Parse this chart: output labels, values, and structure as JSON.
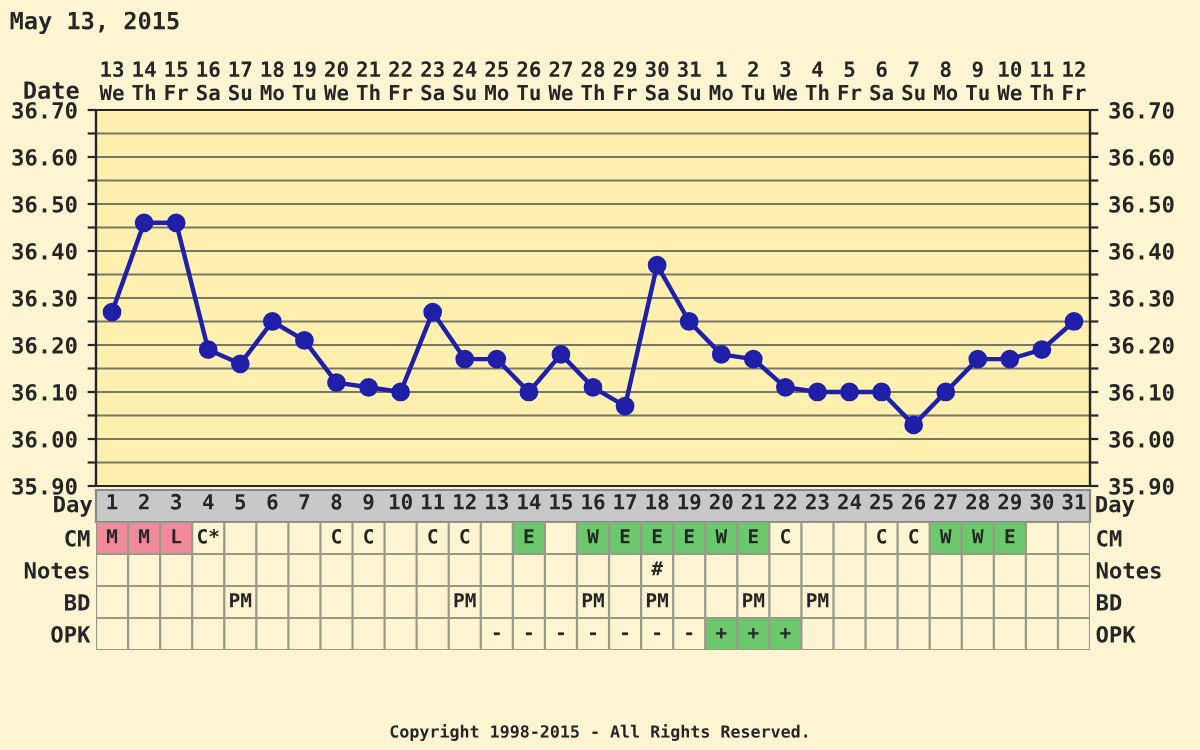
{
  "chart_data": [
    {
      "type": "line",
      "title": "May 13, 2015",
      "xlabel": "Date",
      "categories": [
        "13\nWe",
        "14\nTh",
        "15\nFr",
        "16\nSa",
        "17\nSu",
        "18\nMo",
        "19\nTu",
        "20\nWe",
        "21\nTh",
        "22\nFr",
        "23\nSa",
        "24\nSu",
        "25\nMo",
        "26\nTu",
        "27\nWe",
        "28\nTh",
        "29\nFr",
        "30\nSa",
        "31\nSu",
        "1\nMo",
        "2\nTu",
        "3\nWe",
        "4\nTh",
        "5\nFr",
        "6\nSa",
        "7\nSu",
        "8\nMo",
        "9\nTu",
        "10\nWe",
        "11\nTh",
        "12\nFr"
      ],
      "series": [
        {
          "color": "#1f1fa8",
          "values": [
            36.27,
            36.46,
            36.46,
            36.19,
            36.16,
            36.25,
            36.21,
            36.12,
            36.11,
            36.1,
            36.27,
            36.17,
            36.17,
            36.1,
            36.18,
            36.11,
            36.07,
            36.37,
            36.25,
            36.18,
            36.17,
            36.11,
            36.1,
            36.1,
            36.1,
            36.03,
            36.1,
            36.17,
            36.17,
            36.19,
            36.25
          ]
        }
      ],
      "ylim": [
        35.9,
        36.7
      ],
      "yticks": [
        {
          "value": 35.9,
          "label": "35.90"
        },
        {
          "value": 35.95,
          "label": null
        },
        {
          "value": 36.0,
          "label": "36.00"
        },
        {
          "value": 36.05,
          "label": null
        },
        {
          "value": 36.1,
          "label": "36.10"
        },
        {
          "value": 36.15,
          "label": null
        },
        {
          "value": 36.2,
          "label": "36.20"
        },
        {
          "value": 36.25,
          "label": null
        },
        {
          "value": 36.3,
          "label": "36.30"
        },
        {
          "value": 36.35,
          "label": null
        },
        {
          "value": 36.4,
          "label": "36.40"
        },
        {
          "value": 36.45,
          "label": null
        },
        {
          "value": 36.5,
          "label": "36.50"
        },
        {
          "value": 36.55,
          "label": null
        },
        {
          "value": 36.6,
          "label": "36.60"
        },
        {
          "value": 36.65,
          "label": null
        },
        {
          "value": 36.7,
          "label": "36.70"
        }
      ],
      "y2lim": [
        35.9,
        36.7
      ],
      "y2ticks": [
        {
          "value": 35.9,
          "label": "35.90"
        },
        {
          "value": 35.95,
          "label": null
        },
        {
          "value": 36.0,
          "label": "36.00"
        },
        {
          "value": 36.05,
          "label": null
        },
        {
          "value": 36.1,
          "label": "36.10"
        },
        {
          "value": 36.15,
          "label": null
        },
        {
          "value": 36.2,
          "label": "36.20"
        },
        {
          "value": 36.25,
          "label": null
        },
        {
          "value": 36.3,
          "label": "36.30"
        },
        {
          "value": 36.35,
          "label": null
        },
        {
          "value": 36.4,
          "label": "36.40"
        },
        {
          "value": 36.45,
          "label": null
        },
        {
          "value": 36.5,
          "label": "36.50"
        },
        {
          "value": 36.55,
          "label": null
        },
        {
          "value": 36.6,
          "label": "36.60"
        },
        {
          "value": 36.65,
          "label": null
        },
        {
          "value": 36.7,
          "label": "36.70"
        }
      ],
      "grid": true,
      "marker": "circle",
      "line_style": "solid",
      "legend": false
    },
    {
      "type": "heatmap",
      "xlabel": "Day",
      "categories": [
        "1",
        "2",
        "3",
        "4",
        "5",
        "6",
        "7",
        "8",
        "9",
        "10",
        "11",
        "12",
        "13",
        "14",
        "15",
        "16",
        "17",
        "18",
        "19",
        "20",
        "21",
        "22",
        "23",
        "24",
        "25",
        "26",
        "27",
        "28",
        "29",
        "30",
        "31"
      ],
      "y_categories": [
        "CM",
        "Notes",
        "BD",
        "OPK"
      ],
      "y2_categories": [
        "CM",
        "Notes",
        "BD",
        "OPK"
      ],
      "cells": [
        [
          null,
          null,
          null,
          null,
          null,
          null,
          null,
          null,
          null,
          null,
          null,
          null,
          null,
          null,
          null,
          null,
          null,
          null,
          null,
          null,
          null,
          null,
          null,
          null,
          null,
          null,
          null,
          null,
          null,
          null,
          null
        ],
        [
          null,
          null,
          null,
          null,
          null,
          null,
          null,
          null,
          null,
          null,
          null,
          null,
          null,
          null,
          null,
          null,
          null,
          null,
          null,
          null,
          null,
          null,
          null,
          null,
          null,
          null,
          null,
          null,
          null,
          null,
          null
        ],
        [
          null,
          null,
          null,
          null,
          null,
          null,
          null,
          null,
          null,
          null,
          null,
          null,
          null,
          null,
          null,
          null,
          null,
          null,
          null,
          null,
          null,
          null,
          null,
          null,
          null,
          null,
          null,
          null,
          null,
          null,
          null
        ],
        [
          null,
          null,
          null,
          null,
          null,
          null,
          null,
          null,
          null,
          null,
          null,
          null,
          null,
          null,
          null,
          null,
          null,
          null,
          null,
          null,
          null,
          null,
          null,
          null,
          null,
          null,
          null,
          null,
          null,
          null,
          null
        ]
      ],
      "cell_labels": [
        [
          "M",
          "M",
          "L",
          "C*",
          null,
          null,
          null,
          "C",
          "C",
          null,
          "C",
          "C",
          null,
          "E",
          null,
          "W",
          "E",
          "E",
          "E",
          "W",
          "E",
          "C",
          null,
          null,
          "C",
          "C",
          "W",
          "W",
          "E",
          null,
          null
        ],
        [
          null,
          null,
          null,
          null,
          null,
          null,
          null,
          null,
          null,
          null,
          null,
          null,
          null,
          null,
          null,
          null,
          null,
          "#",
          null,
          null,
          null,
          null,
          null,
          null,
          null,
          null,
          null,
          null,
          null,
          null,
          null
        ],
        [
          null,
          null,
          null,
          null,
          "PM",
          null,
          null,
          null,
          null,
          null,
          null,
          "PM",
          null,
          null,
          null,
          "PM",
          null,
          "PM",
          null,
          null,
          "PM",
          null,
          "PM",
          null,
          null,
          null,
          null,
          null,
          null,
          null,
          null
        ],
        [
          null,
          null,
          null,
          null,
          null,
          null,
          null,
          null,
          null,
          null,
          null,
          null,
          "-",
          "-",
          "-",
          "-",
          "-",
          "-",
          "-",
          "+",
          "+",
          "+",
          null,
          null,
          null,
          null,
          null,
          null,
          null,
          null,
          null
        ]
      ],
      "colors": [
        [
          "#f08a9a",
          "#f08a9a",
          "#f08a9a",
          null,
          null,
          null,
          null,
          null,
          null,
          null,
          null,
          null,
          null,
          "#6cc86c",
          null,
          "#6cc86c",
          "#6cc86c",
          "#6cc86c",
          "#6cc86c",
          "#6cc86c",
          "#6cc86c",
          null,
          null,
          null,
          null,
          null,
          "#6cc86c",
          "#6cc86c",
          "#6cc86c",
          null,
          null
        ],
        [
          null,
          null,
          null,
          null,
          null,
          null,
          null,
          null,
          null,
          null,
          null,
          null,
          null,
          null,
          null,
          null,
          null,
          null,
          null,
          null,
          null,
          null,
          null,
          null,
          null,
          null,
          null,
          null,
          null,
          null,
          null
        ],
        [
          null,
          null,
          null,
          null,
          null,
          null,
          null,
          null,
          null,
          null,
          null,
          null,
          null,
          null,
          null,
          null,
          null,
          null,
          null,
          null,
          null,
          null,
          null,
          null,
          null,
          null,
          null,
          null,
          null,
          null,
          null
        ],
        [
          null,
          null,
          null,
          null,
          null,
          null,
          null,
          null,
          null,
          null,
          null,
          null,
          null,
          null,
          null,
          null,
          null,
          null,
          null,
          "#6cc86c",
          "#6cc86c",
          "#6cc86c",
          null,
          null,
          null,
          null,
          null,
          null,
          null,
          null,
          null
        ]
      ],
      "annotations": [
        "Copyright 1998-2015 - All Rights Reserved."
      ]
    }
  ]
}
